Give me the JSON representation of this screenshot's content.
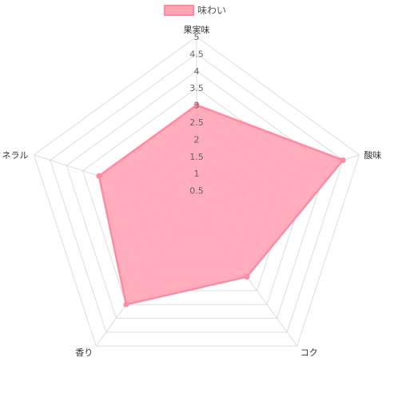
{
  "chart_data": {
    "type": "radar",
    "labels": [
      "果実味",
      "酸味",
      "コク",
      "香り",
      "ミネラル"
    ],
    "series": [
      {
        "name": "味わい",
        "values": [
          3,
          4.5,
          2.5,
          3.5,
          3
        ],
        "fill_color": "#ffa3b5",
        "border_color": "#ff8aa2"
      }
    ],
    "r_range": [
      0,
      5
    ],
    "ticks": [
      "0.5",
      "1",
      "1.5",
      "2",
      "2.5",
      "3",
      "3.5",
      "4",
      "4.5",
      "5"
    ],
    "grid_color": "#dddddd",
    "legend_position": "top"
  }
}
